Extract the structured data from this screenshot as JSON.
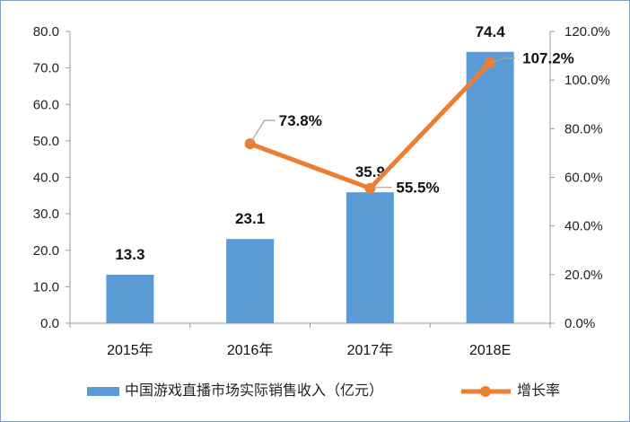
{
  "chart_data": {
    "type": "bar",
    "categories": [
      "2015年",
      "2016年",
      "2017年",
      "2018E"
    ],
    "series": [
      {
        "name": "中国游戏直播市场实际销售收入（亿元）",
        "type": "bar",
        "axis": "left",
        "values": [
          13.3,
          23.1,
          35.9,
          74.4
        ],
        "labels": [
          "13.3",
          "23.1",
          "35.9",
          "74.4"
        ]
      },
      {
        "name": "增长率",
        "type": "line",
        "axis": "right",
        "values": [
          null,
          73.8,
          55.5,
          107.2
        ],
        "labels": [
          "",
          "73.8%",
          "55.5%",
          "107.2%"
        ]
      }
    ],
    "y_left": {
      "range": [
        0,
        80
      ],
      "ticks": [
        "0.0",
        "10.0",
        "20.0",
        "30.0",
        "40.0",
        "50.0",
        "60.0",
        "70.0",
        "80.0"
      ]
    },
    "y_right": {
      "range": [
        0,
        120
      ],
      "ticks": [
        "0.0%",
        "20.0%",
        "40.0%",
        "60.0%",
        "80.0%",
        "100.0%",
        "120.0%"
      ]
    },
    "grid": false,
    "legend": "bottom",
    "colors": {
      "bar": "#5b9bd5",
      "line": "#ed7d31"
    }
  }
}
